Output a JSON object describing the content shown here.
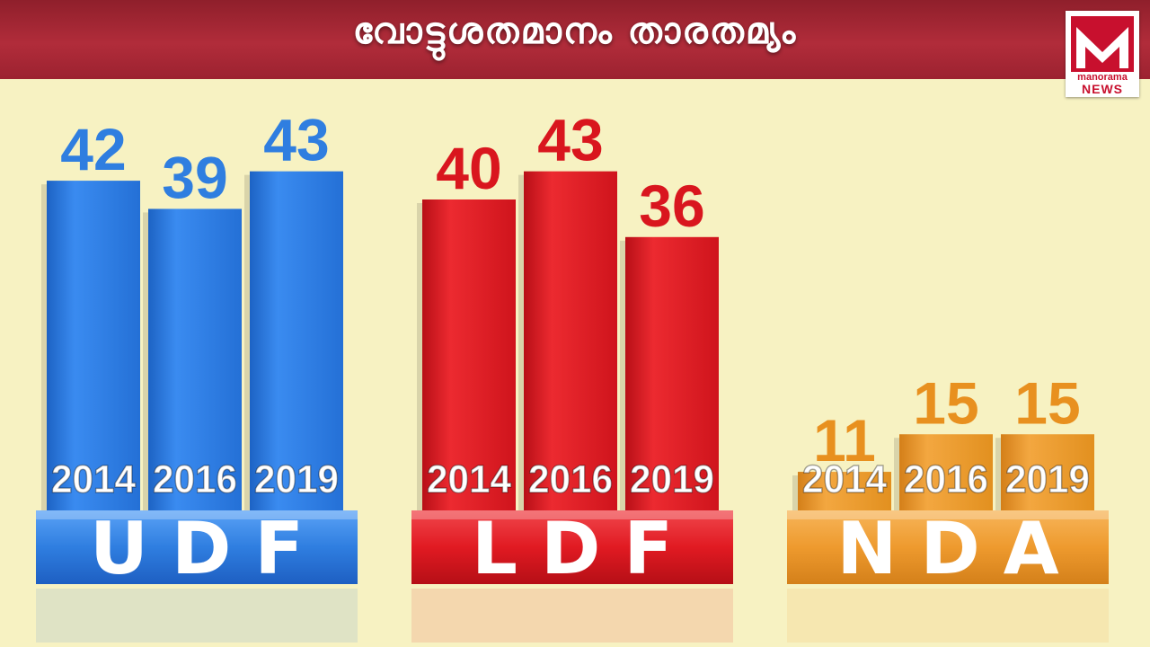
{
  "header": {
    "title": "വോട്ടുശതമാനം താരതമ്യം"
  },
  "logo": {
    "line1": "manorama",
    "line2": "NEWS"
  },
  "colors": {
    "header_bg": "#a82634",
    "background": "#f7f2c2",
    "udf": "#2f7ee0",
    "ldf": "#e11a22",
    "nda": "#ee9a2e"
  },
  "chart_data": {
    "type": "bar",
    "title": "വോട്ടുശതമാനം താരതമ്യം",
    "ylim": [
      0,
      50
    ],
    "grid": false,
    "groups": [
      {
        "name": "UDF",
        "color": "#2f7ee0",
        "label_color": "#2f7ee0",
        "categories": [
          "2014",
          "2016",
          "2019"
        ],
        "values": [
          42,
          39,
          43
        ]
      },
      {
        "name": "LDF",
        "color": "#e11a22",
        "label_color": "#d9161e",
        "categories": [
          "2014",
          "2016",
          "2019"
        ],
        "values": [
          40,
          43,
          36
        ]
      },
      {
        "name": "NDA",
        "color": "#ee9a2e",
        "label_color": "#e8901f",
        "categories": [
          "2014",
          "2016",
          "2019"
        ],
        "values": [
          11,
          15,
          15
        ]
      }
    ]
  }
}
